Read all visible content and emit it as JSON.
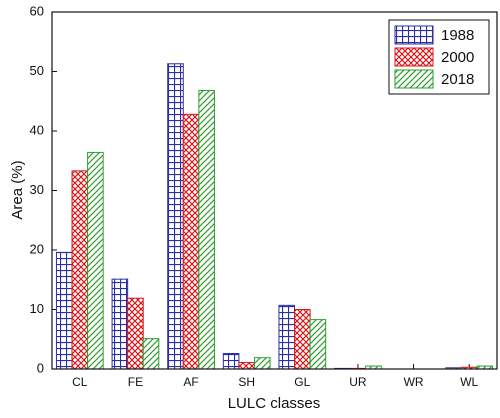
{
  "chart_data": {
    "type": "bar",
    "x_label": "LULC classes",
    "y_label": "Area (%)",
    "categories": [
      "CL",
      "FE",
      "AF",
      "SH",
      "GL",
      "UR",
      "WR",
      "WL"
    ],
    "series": [
      {
        "name": "1988",
        "color": "#2b2ea8",
        "pattern": "grid",
        "values": [
          19.6,
          15.1,
          51.3,
          2.6,
          10.7,
          0.1,
          0,
          0.2
        ]
      },
      {
        "name": "2000",
        "color": "#d7191c",
        "pattern": "crosshatch",
        "values": [
          33.3,
          11.9,
          42.8,
          1.1,
          10.0,
          0.1,
          0,
          0.3
        ]
      },
      {
        "name": "2018",
        "color": "#2e9e2e",
        "pattern": "diagonal",
        "values": [
          36.4,
          5.1,
          46.8,
          1.9,
          8.3,
          0.5,
          0,
          0.5
        ]
      }
    ],
    "ylim": [
      0,
      60
    ],
    "yticks": [
      0,
      10,
      20,
      30,
      40,
      50,
      60
    ],
    "legend": "upper right"
  }
}
